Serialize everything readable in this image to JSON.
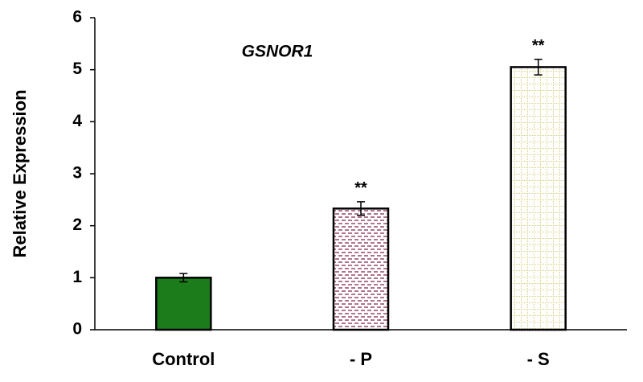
{
  "chart_data": {
    "type": "bar",
    "title": "GSNOR1",
    "y_label": "Relative  Expression",
    "categories": [
      "Control",
      "- P",
      "- S"
    ],
    "values": [
      1.0,
      2.33,
      5.05
    ],
    "errors": [
      0.08,
      0.13,
      0.15
    ],
    "annotations": [
      null,
      "**",
      "**"
    ],
    "colors": [
      "#1c7c1c",
      "#8e3b5e",
      "#d6cb78"
    ],
    "patterns": [
      "solid",
      "dashes",
      "grid"
    ],
    "ylim": [
      0,
      6
    ],
    "yticks": [
      0,
      1,
      2,
      3,
      4,
      5,
      6
    ],
    "grid": false
  }
}
